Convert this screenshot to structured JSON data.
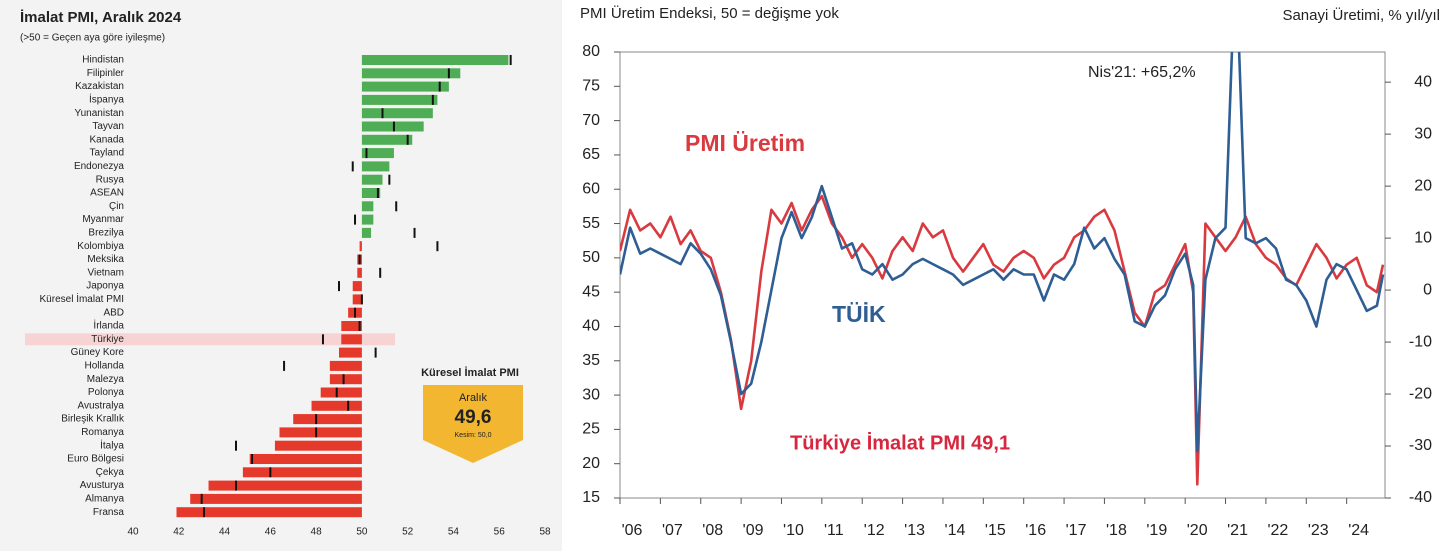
{
  "chart_data": [
    {
      "type": "hbar",
      "title": "İmalat PMI, Aralık 2024",
      "subtitle": "(>50 = Geçen aya göre iyileşme)",
      "categories": [
        "Hindistan",
        "Filipinler",
        "Kazakistan",
        "İspanya",
        "Yunanistan",
        "Tayvan",
        "Kanada",
        "Tayland",
        "Endonezya",
        "Rusya",
        "ASEAN",
        "Çin",
        "Myanmar",
        "Brezilya",
        "Kolombiya",
        "Meksika",
        "Vietnam",
        "Japonya",
        "Küresel İmalat PMI",
        "ABD",
        "İrlanda",
        "Türkiye",
        "Güney Kore",
        "Hollanda",
        "Malezya",
        "Polonya",
        "Avustralya",
        "Birleşik Krallık",
        "Romanya",
        "İtalya",
        "Euro Bölgesi",
        "Çekya",
        "Avusturya",
        "Almanya",
        "Fransa"
      ],
      "values": [
        56.4,
        54.3,
        53.8,
        53.3,
        53.1,
        52.7,
        52.2,
        51.4,
        51.2,
        50.9,
        50.8,
        50.5,
        50.5,
        50.4,
        49.9,
        49.8,
        49.8,
        49.6,
        49.6,
        49.4,
        49.1,
        49.1,
        49.0,
        48.6,
        48.6,
        48.2,
        47.8,
        47.0,
        46.4,
        46.2,
        45.1,
        44.8,
        43.3,
        42.5,
        41.9
      ],
      "previous": [
        56.5,
        53.8,
        53.4,
        53.1,
        50.9,
        51.4,
        52.0,
        50.2,
        49.6,
        51.2,
        50.7,
        51.5,
        49.7,
        52.3,
        53.3,
        49.9,
        50.8,
        49.0,
        50.0,
        49.7,
        49.9,
        48.3,
        50.6,
        46.6,
        49.2,
        48.9,
        49.4,
        48.0,
        48.0,
        44.5,
        45.2,
        46.0,
        44.5,
        43.0,
        43.1
      ],
      "baseline": 50,
      "colors": {
        "above": "#4fae55",
        "below": "#e5392c"
      },
      "marker_color": "#111111",
      "highlight_index": 21,
      "xlim": [
        40,
        58
      ],
      "xticks": [
        40,
        42,
        44,
        46,
        48,
        50,
        52,
        54,
        56,
        58
      ],
      "callout": {
        "title": "Küresel İmalat PMI",
        "label": "Aralık",
        "value": "49,6",
        "note": "Kesim: 50,0"
      }
    },
    {
      "type": "line",
      "title": "PMI Üretim Endeksi, 50 = değişme yok",
      "y2_label": "Sanayi Üretimi, % yıl/yıl",
      "xlim": [
        2006,
        2024.95
      ],
      "xticks": [
        {
          "value": 2006,
          "label": "'06"
        },
        {
          "value": 2007,
          "label": "'07"
        },
        {
          "value": 2008,
          "label": "'08"
        },
        {
          "value": 2009,
          "label": "'09"
        },
        {
          "value": 2010,
          "label": "'10"
        },
        {
          "value": 2011,
          "label": "'11"
        },
        {
          "value": 2012,
          "label": "'12"
        },
        {
          "value": 2013,
          "label": "'13"
        },
        {
          "value": 2014,
          "label": "'14"
        },
        {
          "value": 2015,
          "label": "'15"
        },
        {
          "value": 2016,
          "label": "'16"
        },
        {
          "value": 2017,
          "label": "'17"
        },
        {
          "value": 2018,
          "label": "'18"
        },
        {
          "value": 2019,
          "label": "'19"
        },
        {
          "value": 2020,
          "label": "'20"
        },
        {
          "value": 2021,
          "label": "'21"
        },
        {
          "value": 2022,
          "label": "'22"
        },
        {
          "value": 2023,
          "label": "'23"
        },
        {
          "value": 2024,
          "label": "'24"
        }
      ],
      "ylim": [
        15,
        80
      ],
      "yticks": [
        15,
        20,
        25,
        30,
        35,
        40,
        45,
        50,
        55,
        60,
        65,
        70,
        75,
        80
      ],
      "y2lim": [
        -40,
        45.8
      ],
      "y2ticks": [
        -40,
        -30,
        -20,
        -10,
        0,
        10,
        20,
        30,
        40
      ],
      "x": [
        2006,
        2006.25,
        2006.5,
        2006.75,
        2007,
        2007.25,
        2007.5,
        2007.75,
        2008,
        2008.25,
        2008.5,
        2008.75,
        2009,
        2009.25,
        2009.5,
        2009.75,
        2010,
        2010.25,
        2010.5,
        2010.75,
        2011,
        2011.25,
        2011.5,
        2011.75,
        2012,
        2012.25,
        2012.5,
        2012.75,
        2013,
        2013.25,
        2013.5,
        2013.75,
        2014,
        2014.25,
        2014.5,
        2014.75,
        2015,
        2015.25,
        2015.5,
        2015.75,
        2016,
        2016.25,
        2016.5,
        2016.75,
        2017,
        2017.25,
        2017.5,
        2017.75,
        2018,
        2018.25,
        2018.5,
        2018.75,
        2019,
        2019.25,
        2019.5,
        2019.75,
        2020,
        2020.2,
        2020.3,
        2020.5,
        2020.75,
        2021,
        2021.25,
        2021.5,
        2021.75,
        2022,
        2022.25,
        2022.5,
        2022.75,
        2023,
        2023.25,
        2023.5,
        2023.75,
        2024,
        2024.25,
        2024.5,
        2024.75,
        2024.9
      ],
      "series": [
        {
          "name": "PMI Üretim",
          "color": "#d93a3f",
          "values": [
            51,
            57,
            54,
            55,
            53,
            56,
            52,
            54,
            51,
            50,
            45,
            38,
            28,
            35,
            48,
            57,
            55,
            58,
            54,
            57,
            59,
            55,
            53,
            50,
            52,
            50,
            47,
            51,
            53,
            51,
            55,
            53,
            54,
            50,
            48,
            50,
            52,
            49,
            48,
            50,
            51,
            50,
            47,
            49,
            50,
            53,
            54,
            56,
            57,
            54,
            48,
            42,
            40,
            45,
            46,
            49,
            52,
            45,
            17,
            55,
            53,
            51,
            53,
            56,
            52,
            50,
            49,
            47,
            46,
            49,
            52,
            50,
            47,
            49,
            50,
            46,
            45,
            49
          ]
        },
        {
          "name": "TÜİK",
          "color": "#2e5e93",
          "axis": "y2",
          "values": [
            3,
            12,
            7,
            8,
            7,
            6,
            5,
            9,
            7,
            4,
            -1,
            -10,
            -20,
            -18,
            -10,
            0,
            10,
            15,
            10,
            14,
            20,
            14,
            8,
            9,
            4,
            3,
            5,
            2,
            3,
            5,
            6,
            5,
            4,
            3,
            1,
            2,
            3,
            4,
            2,
            4,
            3,
            3,
            -2,
            3,
            2,
            5,
            12,
            8,
            10,
            6,
            3,
            -6,
            -7,
            -3,
            -1,
            4,
            7,
            1,
            -31,
            2,
            10,
            12,
            65.2,
            10,
            9,
            10,
            8,
            2,
            1,
            -2,
            -7,
            2,
            5,
            4,
            0,
            -4,
            -3,
            3
          ]
        }
      ],
      "annotations": [
        {
          "text": "Nis'21: +65,2%"
        },
        {
          "text": "Türkiye İmalat PMI 49,1"
        }
      ]
    }
  ]
}
